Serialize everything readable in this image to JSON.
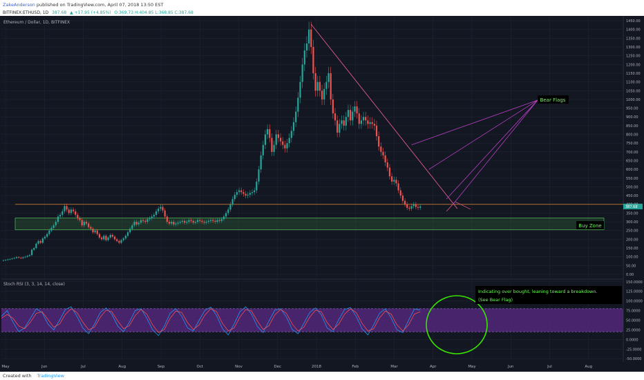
{
  "header": {
    "author": "ZakeAnderson",
    "published": "published on TradingView.com, April 07, 2018 13:50 EST"
  },
  "ticker": {
    "symbol": "BITFINEX:ETHUSD, 1D",
    "last": "387.68",
    "change": "▲ +17.95 (+4.85%)",
    "ohlc": "O:369.73 H:404.85 L:368.85 C:387.68"
  },
  "footer": {
    "created_with": "Created with",
    "brand": "TradingView"
  },
  "colors": {
    "background": "#131722",
    "up": "#26a69a",
    "down": "#ef5350",
    "resistance": "#e58a2f",
    "trendline": "#e05a8e",
    "fan": "#b93fc3",
    "buy_zone": "#4caf50",
    "rsi_band": "#5b2a86",
    "rsi_k": "#2196f3",
    "rsi_d": "#ef5350",
    "annotation": "#6dff5a"
  },
  "chart_data": [
    {
      "type": "candlestick",
      "title": "Ethereum / Dollar, 1D, BITFINEX",
      "x_ticks": [
        "May",
        "Jun",
        "Jul",
        "Aug",
        "Sep",
        "Oct",
        "Nov",
        "Dec",
        "2018",
        "Feb",
        "Mar",
        "Apr",
        "May",
        "Jun",
        "Jul",
        "Aug"
      ],
      "y_ticks": [
        "1450.00",
        "1400.00",
        "1350.00",
        "1300.00",
        "1250.00",
        "1200.00",
        "1150.00",
        "1100.00",
        "1050.00",
        "1000.00",
        "950.00",
        "900.00",
        "850.00",
        "800.00",
        "750.00",
        "700.00",
        "650.00",
        "600.00",
        "550.00",
        "500.00",
        "450.00",
        "400.00",
        "350.00",
        "300.00",
        "250.00",
        "200.00",
        "150.00",
        "100.00",
        "50.00",
        "0.00"
      ],
      "ylim": [
        -20,
        1470
      ],
      "closes": [
        80,
        82,
        85,
        87,
        90,
        93,
        98,
        95,
        92,
        97,
        100,
        105,
        110,
        140,
        150,
        175,
        190,
        180,
        205,
        215,
        230,
        250,
        265,
        280,
        300,
        330,
        340,
        360,
        390,
        370,
        350,
        370,
        360,
        340,
        320,
        310,
        280,
        300,
        290,
        270,
        260,
        240,
        250,
        230,
        210,
        200,
        220,
        195,
        210,
        225,
        215,
        200,
        190,
        180,
        195,
        205,
        220,
        240,
        260,
        280,
        300,
        285,
        295,
        310,
        305,
        300,
        315,
        320,
        330,
        340,
        360,
        375,
        385,
        365,
        330,
        300,
        290,
        300,
        285,
        290,
        295,
        300,
        305,
        295,
        300,
        310,
        305,
        295,
        300,
        310,
        305,
        300,
        295,
        300,
        305,
        310,
        305,
        300,
        310,
        305,
        315,
        330,
        350,
        370,
        400,
        430,
        455,
        470,
        480,
        470,
        460,
        450,
        455,
        465,
        470,
        480,
        530,
        600,
        680,
        740,
        800,
        830,
        780,
        700,
        740,
        800,
        780,
        760,
        740,
        720,
        750,
        780,
        820,
        870,
        930,
        1010,
        1100,
        1200,
        1280,
        1320,
        1400,
        1300,
        1150,
        1050,
        1100,
        1050,
        1000,
        1060,
        1100,
        1150,
        1000,
        920,
        880,
        810,
        860,
        880,
        850,
        900,
        940,
        880,
        930,
        960,
        920,
        860,
        880,
        900,
        880,
        860,
        870,
        860,
        850,
        790,
        730,
        700,
        680,
        640,
        610,
        560,
        530,
        540,
        520,
        480,
        450,
        420,
        400,
        380,
        375,
        390,
        400,
        385,
        380,
        388
      ],
      "annotations": [
        "Bear Flags",
        "Buy Zone"
      ],
      "lines": {
        "resistance_level": 400,
        "buy_zone": [
          255,
          322
        ],
        "trendline": {
          "from": {
            "bar": 141,
            "price": 1430
          },
          "to": {
            "bar": 208,
            "price": 375
          }
        }
      },
      "current_price": 387.68
    },
    {
      "type": "line",
      "title": "Stoch RSI (3, 3, 14, 14, close)",
      "y_ticks": [
        "150.0000",
        "125.0000",
        "100.0000",
        "75.0000",
        "50.0000",
        "25.0000",
        "0.0000",
        "-25.0000",
        "-50.0000"
      ],
      "ylim": [
        -55,
        155
      ],
      "band": [
        20,
        80
      ],
      "series": [
        {
          "values": [
            60,
            75,
            45,
            20,
            30,
            55,
            80,
            70,
            40,
            25,
            50,
            78,
            85,
            60,
            30,
            15,
            40,
            70,
            82,
            65,
            35,
            20,
            45,
            75,
            80,
            55,
            25,
            10,
            35,
            68,
            80,
            60,
            30,
            22,
            50,
            76,
            84,
            62,
            28,
            12,
            40,
            72,
            85,
            66,
            34,
            18,
            48,
            76,
            80,
            58,
            26,
            15,
            42,
            70,
            82,
            64,
            30,
            20,
            52,
            78,
            83,
            60,
            28,
            12,
            38,
            68,
            80,
            56,
            25,
            18,
            50,
            79,
            77
          ]
        },
        {
          "values": [
            55,
            65,
            55,
            35,
            28,
            45,
            68,
            72,
            52,
            32,
            40,
            65,
            80,
            70,
            45,
            25,
            32,
            58,
            76,
            72,
            48,
            28,
            36,
            62,
            78,
            66,
            38,
            18,
            26,
            55,
            74,
            70,
            44,
            26,
            38,
            64,
            80,
            72,
            42,
            22,
            30,
            58,
            78,
            74,
            48,
            26,
            36,
            64,
            78,
            68,
            40,
            22,
            32,
            58,
            76,
            72,
            44,
            26,
            40,
            66,
            80,
            70,
            42,
            22,
            28,
            56,
            74,
            66,
            38,
            22,
            38,
            66,
            72
          ]
        }
      ],
      "annotations": [
        "Indicating over bought, leaning toward a breakdown.",
        "(See Bear Flag)"
      ]
    }
  ]
}
